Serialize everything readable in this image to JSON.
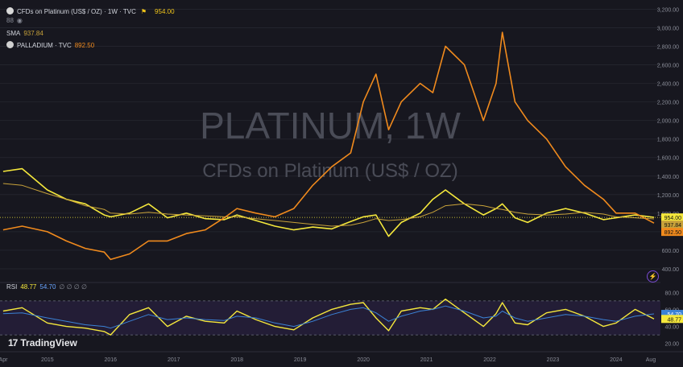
{
  "header": {
    "title": "CFDs on Platinum (US$ / OZ) · 1W · TVC",
    "last_price": "954.00",
    "sub_label": "88",
    "sma_label": "SMA",
    "sma_value": "937.84",
    "overlay_label": "PALLADIUM · TVC",
    "overlay_value": "892.50"
  },
  "watermark": {
    "line1": "PLATINUM, 1W",
    "line2": "CFDs on Platinum (US$ / OZ)"
  },
  "rsi_header": {
    "label": "RSI",
    "rsi_value": "48.77",
    "ma_value": "54.70",
    "extras": "∅ ∅ ∅ ∅"
  },
  "logo": {
    "text": "TradingView"
  },
  "colors": {
    "platinum": "#f5e83c",
    "sma": "#c8a23a",
    "palladium": "#f08a1d",
    "rsi": "#f5e83c",
    "rsi_ma": "#3b82d6",
    "background": "#17171f",
    "rsi_band": "#2a2140"
  },
  "chart_data": {
    "type": "line",
    "price_axis": {
      "ticks": [
        "3,200.00",
        "3,000.00",
        "2,800.00",
        "2,600.00",
        "2,400.00",
        "2,200.00",
        "2,000.00",
        "1,800.00",
        "1,600.00",
        "1,400.00",
        "1,200.00",
        "1,000.00",
        "800.00",
        "600.00",
        "400.00"
      ],
      "ylim": [
        330,
        3230
      ]
    },
    "rsi_axis": {
      "ticks": [
        "80.00",
        "60.00",
        "40.00",
        "20.00"
      ],
      "ylim": [
        15,
        85
      ],
      "bands": [
        30,
        70
      ]
    },
    "time_axis": [
      "Apr",
      "2015",
      "2016",
      "2017",
      "2018",
      "2019",
      "2020",
      "2021",
      "2022",
      "2023",
      "2024",
      "Aug"
    ],
    "x": [
      2014.3,
      2014.6,
      2015.0,
      2015.3,
      2015.6,
      2015.9,
      2016.0,
      2016.3,
      2016.6,
      2016.9,
      2017.2,
      2017.5,
      2017.8,
      2018.0,
      2018.3,
      2018.6,
      2018.9,
      2019.2,
      2019.5,
      2019.8,
      2020.0,
      2020.2,
      2020.4,
      2020.6,
      2020.9,
      2021.1,
      2021.3,
      2021.6,
      2021.9,
      2022.1,
      2022.2,
      2022.4,
      2022.6,
      2022.9,
      2023.2,
      2023.5,
      2023.8,
      2024.0,
      2024.3,
      2024.6
    ],
    "series": [
      {
        "name": "PLATINUM",
        "values": [
          1450,
          1480,
          1250,
          1150,
          1100,
          980,
          960,
          1000,
          1100,
          950,
          1000,
          940,
          930,
          980,
          920,
          860,
          820,
          850,
          830,
          910,
          960,
          980,
          750,
          900,
          1000,
          1150,
          1250,
          1100,
          980,
          1050,
          1100,
          950,
          900,
          1000,
          1050,
          1000,
          930,
          950,
          980,
          954
        ]
      },
      {
        "name": "SMA",
        "values": [
          1320,
          1300,
          1210,
          1150,
          1080,
          1040,
          1000,
          990,
          1010,
          990,
          980,
          970,
          960,
          960,
          940,
          920,
          900,
          880,
          860,
          870,
          900,
          940,
          920,
          930,
          960,
          1010,
          1080,
          1100,
          1080,
          1050,
          1040,
          1010,
          990,
          980,
          990,
          1010,
          990,
          960,
          950,
          937.84
        ]
      },
      {
        "name": "PALLADIUM",
        "values": [
          820,
          860,
          800,
          700,
          620,
          580,
          500,
          560,
          700,
          700,
          780,
          820,
          950,
          1050,
          1000,
          960,
          1050,
          1300,
          1500,
          1650,
          2200,
          2500,
          1900,
          2200,
          2400,
          2300,
          2800,
          2600,
          2000,
          2400,
          2950,
          2200,
          2000,
          1800,
          1500,
          1300,
          1150,
          1000,
          1000,
          892.5
        ]
      },
      {
        "name": "RSI",
        "values": [
          58,
          62,
          44,
          40,
          38,
          34,
          30,
          54,
          62,
          40,
          52,
          46,
          44,
          58,
          48,
          40,
          36,
          50,
          60,
          66,
          68,
          50,
          35,
          58,
          62,
          60,
          72,
          56,
          40,
          55,
          68,
          44,
          42,
          56,
          60,
          52,
          40,
          44,
          60,
          48.77
        ]
      },
      {
        "name": "RSI MA",
        "values": [
          55,
          56,
          50,
          46,
          42,
          40,
          38,
          46,
          54,
          48,
          50,
          48,
          47,
          52,
          50,
          44,
          40,
          46,
          54,
          60,
          62,
          56,
          46,
          52,
          58,
          60,
          64,
          58,
          50,
          52,
          58,
          50,
          46,
          50,
          54,
          52,
          48,
          46,
          52,
          54.7
        ]
      }
    ]
  }
}
